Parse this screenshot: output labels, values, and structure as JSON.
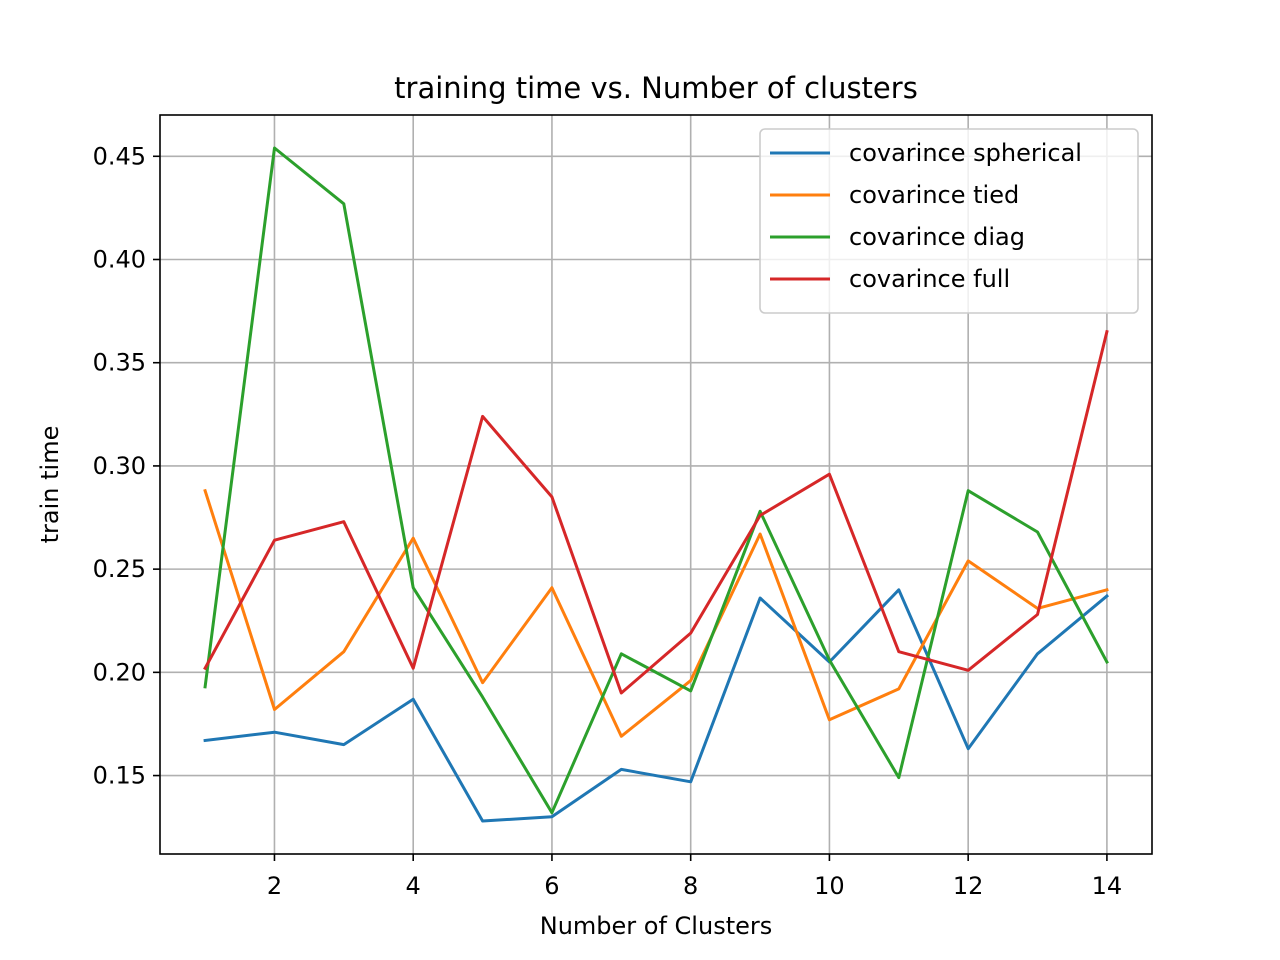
{
  "chart_data": {
    "type": "line",
    "title": "training time  vs. Number of clusters",
    "xlabel": "Number of Clusters",
    "ylabel": "train time",
    "xlim": [
      0.35,
      14.65
    ],
    "ylim": [
      0.112,
      0.47
    ],
    "xticks": [
      2,
      4,
      6,
      8,
      10,
      12,
      14
    ],
    "yticks": [
      0.15,
      0.2,
      0.25,
      0.3,
      0.35,
      0.4,
      0.45
    ],
    "ytick_labels": [
      "0.15",
      "0.20",
      "0.25",
      "0.30",
      "0.35",
      "0.40",
      "0.45"
    ],
    "grid": true,
    "legend_position": "top-right",
    "x": [
      1,
      2,
      3,
      4,
      5,
      6,
      7,
      8,
      9,
      10,
      11,
      12,
      13,
      14
    ],
    "series": [
      {
        "name": "covarince  spherical",
        "color": "#1f77b4",
        "values": [
          0.167,
          0.171,
          0.165,
          0.187,
          0.128,
          0.13,
          0.153,
          0.147,
          0.236,
          0.205,
          0.24,
          0.163,
          0.209,
          0.237
        ]
      },
      {
        "name": "covarince  tied",
        "color": "#ff7f0e",
        "values": [
          0.288,
          0.182,
          0.21,
          0.265,
          0.195,
          0.241,
          0.169,
          0.196,
          0.267,
          0.177,
          0.192,
          0.254,
          0.231,
          0.24
        ]
      },
      {
        "name": "covarince  diag",
        "color": "#2ca02c",
        "values": [
          0.193,
          0.454,
          0.427,
          0.241,
          0.188,
          0.132,
          0.209,
          0.191,
          0.278,
          0.206,
          0.149,
          0.288,
          0.268,
          0.205
        ]
      },
      {
        "name": "covarince  full",
        "color": "#d62728",
        "values": [
          0.202,
          0.264,
          0.273,
          0.202,
          0.324,
          0.285,
          0.19,
          0.219,
          0.276,
          0.296,
          0.21,
          0.201,
          0.228,
          0.365
        ]
      }
    ]
  }
}
